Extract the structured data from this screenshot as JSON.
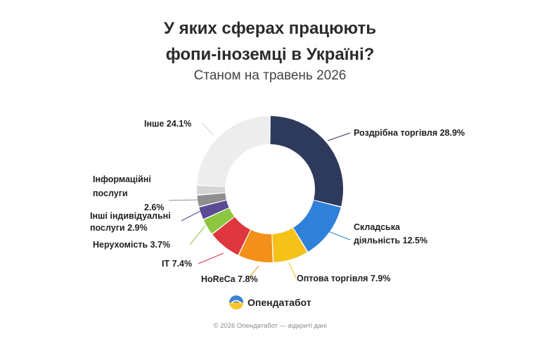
{
  "header": {
    "title_line1": "У яких сферах працюють",
    "title_line2": "фопи-іноземці в Україні?",
    "subtitle": "Станом на травень 2026"
  },
  "brand": {
    "name": "Опендатабот",
    "logo_icon": "opendatabot-logo-icon"
  },
  "footer": {
    "text": "© 2026 Опендатабот — відкриті дані"
  },
  "chart_data": {
    "type": "pie",
    "variant": "donut",
    "unit": "%",
    "slices": [
      {
        "name": "Роздрібна торгівля",
        "value": 28.9,
        "color": "#2d3a5c",
        "label_lines": [
          "Роздрібна торгівля 28.9%"
        ]
      },
      {
        "name": "Складська діяльність",
        "value": 12.5,
        "color": "#2f80d9",
        "label_lines": [
          "Складська",
          "діяльність 12.5%"
        ]
      },
      {
        "name": "Оптова торгівля",
        "value": 7.9,
        "color": "#f5c21a",
        "label_lines": [
          "Оптова торгівля 7.9%"
        ]
      },
      {
        "name": "HoReCa",
        "value": 7.8,
        "color": "#f39019",
        "label_lines": [
          "HoReCa 7.8%"
        ]
      },
      {
        "name": "IT",
        "value": 7.4,
        "color": "#e0363f",
        "label_lines": [
          "IT 7.4%"
        ]
      },
      {
        "name": "Нерухомість",
        "value": 3.7,
        "color": "#8cc63f",
        "label_lines": [
          "Нерухомість 3.7%"
        ]
      },
      {
        "name": "Інші індивідуальні послуги",
        "value": 2.9,
        "color": "#5b4b94",
        "label_lines": [
          "Інші індивідуальні",
          "послуги 2.9%"
        ]
      },
      {
        "name": "Інформаційні послуги",
        "value": 2.6,
        "color": "#8f8f8f",
        "label_lines": [
          "Інформаційні",
          "послуги",
          "2.6%"
        ]
      },
      {
        "name": "",
        "value": 2.2,
        "color": "#d4d4d4",
        "label_lines": []
      },
      {
        "name": "Інше",
        "value": 24.1,
        "color": "#ededed",
        "label_lines": [
          "Інше 24.1%"
        ]
      }
    ]
  }
}
